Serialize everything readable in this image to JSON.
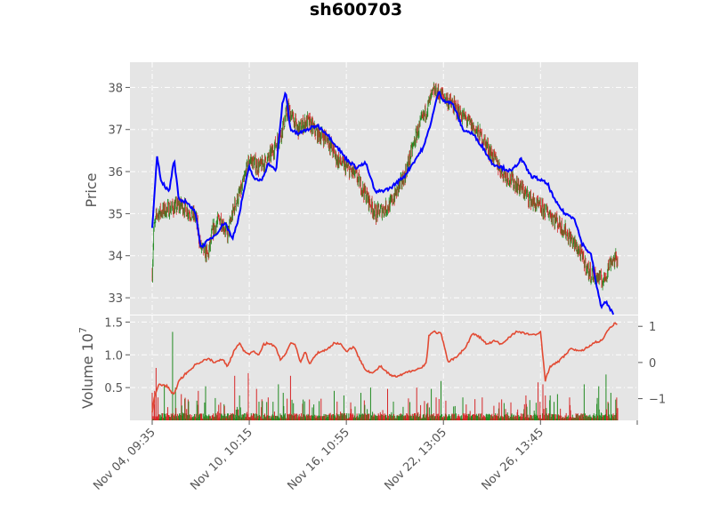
{
  "chart_data": [
    {
      "type": "candlestick",
      "title": "sh600703",
      "ylabel": "Price",
      "ylim": [
        32.6,
        38.6
      ],
      "yticks": [
        33,
        34,
        35,
        36,
        37,
        38
      ],
      "xtick_labels": [
        "Nov 04, 09:35",
        "Nov 10, 10:15",
        "Nov 16, 10:55",
        "Nov 22, 13:05",
        "Nov 26, 13:45"
      ],
      "xtick_index": [
        0,
        200,
        400,
        600,
        800
      ],
      "bar_count": 960,
      "up_color": "#228B22",
      "down_color": "#D62728",
      "grid": true,
      "price_anchors": [
        [
          0,
          33.6
        ],
        [
          3,
          34.6
        ],
        [
          10,
          35.0
        ],
        [
          30,
          35.1
        ],
        [
          60,
          35.2
        ],
        [
          90,
          34.9
        ],
        [
          100,
          34.2
        ],
        [
          115,
          34.0
        ],
        [
          125,
          34.6
        ],
        [
          140,
          34.9
        ],
        [
          155,
          34.5
        ],
        [
          170,
          35.2
        ],
        [
          185,
          35.6
        ],
        [
          200,
          36.3
        ],
        [
          220,
          36.1
        ],
        [
          240,
          36.3
        ],
        [
          265,
          36.9
        ],
        [
          280,
          37.5
        ],
        [
          300,
          37.0
        ],
        [
          320,
          37.2
        ],
        [
          340,
          36.9
        ],
        [
          360,
          36.8
        ],
        [
          380,
          36.3
        ],
        [
          420,
          35.9
        ],
        [
          460,
          35.0
        ],
        [
          490,
          35.2
        ],
        [
          520,
          35.9
        ],
        [
          545,
          36.9
        ],
        [
          580,
          37.9
        ],
        [
          600,
          37.8
        ],
        [
          625,
          37.5
        ],
        [
          650,
          37.2
        ],
        [
          680,
          36.8
        ],
        [
          720,
          36.0
        ],
        [
          760,
          35.6
        ],
        [
          790,
          35.2
        ],
        [
          820,
          35.0
        ],
        [
          850,
          34.6
        ],
        [
          880,
          34.1
        ],
        [
          900,
          33.6
        ],
        [
          915,
          33.5
        ],
        [
          930,
          33.4
        ],
        [
          945,
          33.9
        ],
        [
          959,
          33.9
        ]
      ],
      "overlay_line": {
        "color": "#0000FF",
        "anchors": [
          [
            0,
            34.7
          ],
          [
            5,
            35.5
          ],
          [
            10,
            36.4
          ],
          [
            18,
            35.8
          ],
          [
            35,
            35.5
          ],
          [
            45,
            36.3
          ],
          [
            55,
            35.3
          ],
          [
            70,
            35.3
          ],
          [
            90,
            35.0
          ],
          [
            100,
            34.2
          ],
          [
            110,
            34.3
          ],
          [
            130,
            34.5
          ],
          [
            150,
            34.8
          ],
          [
            165,
            34.4
          ],
          [
            178,
            34.9
          ],
          [
            188,
            35.5
          ],
          [
            200,
            36.1
          ],
          [
            212,
            35.8
          ],
          [
            225,
            35.8
          ],
          [
            240,
            36.2
          ],
          [
            255,
            36.0
          ],
          [
            268,
            37.6
          ],
          [
            275,
            37.9
          ],
          [
            285,
            37.0
          ],
          [
            300,
            36.9
          ],
          [
            320,
            37.0
          ],
          [
            340,
            37.1
          ],
          [
            360,
            36.9
          ],
          [
            380,
            36.6
          ],
          [
            400,
            36.3
          ],
          [
            420,
            36.1
          ],
          [
            440,
            36.2
          ],
          [
            460,
            35.5
          ],
          [
            490,
            35.6
          ],
          [
            520,
            35.9
          ],
          [
            560,
            36.6
          ],
          [
            575,
            37.2
          ],
          [
            590,
            37.9
          ],
          [
            600,
            37.7
          ],
          [
            620,
            37.6
          ],
          [
            640,
            37.0
          ],
          [
            660,
            36.9
          ],
          [
            680,
            36.6
          ],
          [
            700,
            36.2
          ],
          [
            720,
            36.1
          ],
          [
            740,
            36.0
          ],
          [
            760,
            36.3
          ],
          [
            780,
            35.9
          ],
          [
            800,
            35.8
          ],
          [
            815,
            35.7
          ],
          [
            830,
            35.3
          ],
          [
            850,
            35.0
          ],
          [
            870,
            34.9
          ],
          [
            885,
            34.3
          ],
          [
            905,
            34.0
          ],
          [
            915,
            33.3
          ],
          [
            925,
            32.8
          ],
          [
            935,
            32.9
          ],
          [
            945,
            32.7
          ],
          [
            950,
            32.6
          ]
        ]
      }
    },
    {
      "type": "bar",
      "ylabel": "Volume",
      "yscale_label": "10",
      "yscale_exponent": "7",
      "ylim": [
        0,
        1.6
      ],
      "yticks": [
        0.5,
        1.0,
        1.5
      ],
      "ytick_labels": [
        "0.5",
        "1.0",
        "1.5"
      ],
      "right_ylim": [
        -1.6,
        1.3
      ],
      "right_yticks": [
        -1,
        0,
        1
      ],
      "right_ytick_labels": [
        "−1",
        "0",
        "1"
      ],
      "bar_count": 960,
      "bar_colors": [
        "#228B22",
        "#D62728"
      ],
      "tall_bars": [
        [
          0,
          0.42
        ],
        [
          5,
          0.45
        ],
        [
          8,
          0.8
        ],
        [
          12,
          0.35
        ],
        [
          25,
          0.55
        ],
        [
          42,
          1.35
        ],
        [
          48,
          0.5
        ],
        [
          60,
          0.4
        ],
        [
          95,
          0.45
        ],
        [
          110,
          0.52
        ],
        [
          170,
          0.68
        ],
        [
          180,
          0.38
        ],
        [
          198,
          0.72
        ],
        [
          215,
          0.48
        ],
        [
          260,
          0.55
        ],
        [
          270,
          0.42
        ],
        [
          285,
          0.68
        ],
        [
          375,
          0.45
        ],
        [
          395,
          0.38
        ],
        [
          430,
          0.42
        ],
        [
          450,
          0.5
        ],
        [
          485,
          0.48
        ],
        [
          545,
          0.5
        ],
        [
          575,
          0.48
        ],
        [
          585,
          0.35
        ],
        [
          595,
          0.6
        ],
        [
          605,
          0.3
        ],
        [
          640,
          0.35
        ],
        [
          680,
          0.35
        ],
        [
          720,
          0.32
        ],
        [
          770,
          0.38
        ],
        [
          795,
          0.58
        ],
        [
          805,
          0.55
        ],
        [
          810,
          0.38
        ],
        [
          820,
          0.38
        ],
        [
          835,
          0.4
        ],
        [
          860,
          0.35
        ],
        [
          890,
          0.55
        ],
        [
          920,
          0.52
        ],
        [
          935,
          0.7
        ],
        [
          945,
          0.42
        ]
      ],
      "overlay_line": {
        "color": "#E24A33",
        "anchors": [
          [
            0,
            -1.4
          ],
          [
            5,
            -0.9
          ],
          [
            15,
            -0.6
          ],
          [
            30,
            -0.65
          ],
          [
            45,
            -0.9
          ],
          [
            55,
            -0.5
          ],
          [
            70,
            -0.3
          ],
          [
            90,
            -0.05
          ],
          [
            105,
            0.05
          ],
          [
            115,
            0.1
          ],
          [
            130,
            0.0
          ],
          [
            145,
            0.1
          ],
          [
            155,
            -0.1
          ],
          [
            170,
            0.35
          ],
          [
            180,
            0.55
          ],
          [
            190,
            0.3
          ],
          [
            200,
            0.25
          ],
          [
            210,
            0.3
          ],
          [
            220,
            0.2
          ],
          [
            230,
            0.5
          ],
          [
            240,
            0.55
          ],
          [
            255,
            0.4
          ],
          [
            265,
            0.05
          ],
          [
            275,
            0.25
          ],
          [
            285,
            0.55
          ],
          [
            295,
            0.5
          ],
          [
            305,
            0.0
          ],
          [
            315,
            0.3
          ],
          [
            325,
            -0.05
          ],
          [
            335,
            0.2
          ],
          [
            345,
            0.3
          ],
          [
            360,
            0.35
          ],
          [
            375,
            0.55
          ],
          [
            390,
            0.5
          ],
          [
            400,
            0.3
          ],
          [
            415,
            0.45
          ],
          [
            425,
            0.15
          ],
          [
            440,
            -0.2
          ],
          [
            455,
            -0.3
          ],
          [
            470,
            -0.1
          ],
          [
            490,
            -0.35
          ],
          [
            505,
            -0.4
          ],
          [
            520,
            -0.3
          ],
          [
            540,
            -0.2
          ],
          [
            555,
            -0.15
          ],
          [
            565,
            0.0
          ],
          [
            570,
            0.75
          ],
          [
            580,
            0.85
          ],
          [
            595,
            0.8
          ],
          [
            610,
            0.0
          ],
          [
            620,
            0.1
          ],
          [
            630,
            0.2
          ],
          [
            645,
            0.4
          ],
          [
            660,
            0.8
          ],
          [
            675,
            0.7
          ],
          [
            690,
            0.5
          ],
          [
            705,
            0.6
          ],
          [
            720,
            0.5
          ],
          [
            735,
            0.7
          ],
          [
            750,
            0.85
          ],
          [
            770,
            0.8
          ],
          [
            790,
            0.75
          ],
          [
            800,
            0.85
          ],
          [
            810,
            -0.5
          ],
          [
            820,
            -0.1
          ],
          [
            835,
            0.0
          ],
          [
            850,
            0.2
          ],
          [
            865,
            0.4
          ],
          [
            880,
            0.3
          ],
          [
            895,
            0.4
          ],
          [
            910,
            0.55
          ],
          [
            925,
            0.6
          ],
          [
            940,
            0.9
          ],
          [
            955,
            1.1
          ],
          [
            959,
            1.05
          ]
        ]
      }
    }
  ]
}
